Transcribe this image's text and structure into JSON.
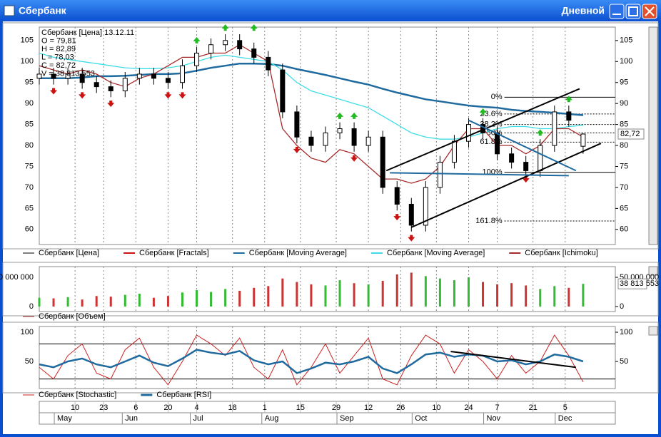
{
  "window": {
    "title": "Сбербанк",
    "mode": "Дневной"
  },
  "date_axis": {
    "xlim": [
      0,
      161
    ],
    "day_ticks": [
      {
        "value": 10,
        "label": "10"
      },
      {
        "value": 18,
        "label": "23"
      },
      {
        "value": 27,
        "label": "6"
      },
      {
        "value": 36,
        "label": "20"
      },
      {
        "value": 44,
        "label": "4"
      },
      {
        "value": 54,
        "label": "18"
      },
      {
        "value": 63,
        "label": "1"
      },
      {
        "value": 73,
        "label": "15"
      },
      {
        "value": 83,
        "label": "29"
      },
      {
        "value": 92,
        "label": "12"
      },
      {
        "value": 101,
        "label": "26"
      },
      {
        "value": 111,
        "label": "10"
      },
      {
        "value": 120,
        "label": "24"
      },
      {
        "value": 128,
        "label": "7"
      },
      {
        "value": 138,
        "label": "21"
      },
      {
        "value": 147,
        "label": "5"
      }
    ],
    "month_ticks": [
      {
        "value": 5,
        "label": "May"
      },
      {
        "value": 24,
        "label": "Jun"
      },
      {
        "value": 43,
        "label": "Jul"
      },
      {
        "value": 63,
        "label": "Aug"
      },
      {
        "value": 84,
        "label": "Sep"
      },
      {
        "value": 105,
        "label": "Oct"
      },
      {
        "value": 125,
        "label": "Nov"
      },
      {
        "value": 145,
        "label": "Dec"
      }
    ]
  },
  "chart_data": [
    {
      "type": "candlestick",
      "name": "Сбербанк [Цена]",
      "color": "#000000",
      "info": [
        "Сбербанк [Цена] 13.12.11",
        "O = 79,81",
        "H = 82,89",
        "L = 78,03",
        "C = 82,72",
        "V = 38 813 553"
      ],
      "x": [
        0,
        4,
        8,
        12,
        16,
        20,
        24,
        28,
        32,
        36,
        40,
        44,
        48,
        52,
        56,
        60,
        64,
        68,
        72,
        76,
        80,
        84,
        88,
        92,
        96,
        100,
        104,
        108,
        112,
        116,
        120,
        124,
        128,
        132,
        136,
        140,
        144,
        148,
        152
      ],
      "open": [
        96,
        97,
        96,
        97,
        95,
        94,
        93,
        96,
        97,
        96,
        95,
        99,
        102,
        104,
        105,
        103,
        101,
        98,
        88,
        82,
        80,
        83,
        84,
        80,
        82,
        70,
        66,
        61,
        70,
        76,
        81,
        85,
        83,
        78,
        76,
        74,
        80,
        88,
        79.81
      ],
      "high": [
        98.5,
        98.5,
        98.5,
        98.5,
        96.5,
        95.5,
        97.5,
        98.5,
        98.5,
        97.5,
        100.5,
        103.5,
        105.5,
        106.5,
        106.5,
        104.5,
        102.5,
        99.5,
        89.5,
        83.5,
        84.5,
        85.5,
        85.5,
        83.5,
        83.5,
        71.5,
        67.5,
        71.5,
        77.5,
        82.5,
        86.5,
        86.5,
        84.5,
        79.5,
        77.5,
        81.5,
        89.5,
        89.5,
        82.89
      ],
      "low": [
        94.5,
        94.5,
        94.5,
        93.5,
        92.5,
        91.5,
        91.5,
        94.5,
        94.5,
        93.5,
        93.5,
        97.5,
        100.5,
        102.5,
        101.5,
        99.5,
        96.5,
        86.5,
        80.5,
        78.5,
        78.5,
        81.5,
        78.5,
        78.5,
        68.5,
        64.5,
        59.5,
        59.5,
        68.5,
        74.5,
        79.5,
        81.5,
        76.5,
        74.5,
        72.5,
        72.5,
        78.5,
        84.5,
        78.03
      ],
      "close": [
        97,
        96,
        97,
        95,
        94,
        93,
        96,
        97,
        96,
        95,
        99,
        102,
        104,
        105,
        103,
        101,
        98,
        88,
        82,
        80,
        83,
        84,
        80,
        82,
        70,
        66,
        61,
        70,
        76,
        81,
        85,
        83,
        78,
        76,
        74,
        80,
        88,
        86,
        82.72
      ],
      "series": [
        {
          "name": "Сбербанк [Moving Average]",
          "color": "#1f6a9e",
          "values": [
            96,
            96,
            96,
            96.2,
            96.5,
            96.5,
            96.6,
            96.8,
            97,
            97,
            97.2,
            97.8,
            98.5,
            99,
            99.5,
            99.5,
            99.4,
            99,
            98.2,
            97.5,
            96.8,
            96,
            95.2,
            94.5,
            93.5,
            92.6,
            91.8,
            91,
            90.5,
            90,
            89.5,
            89.2,
            89,
            88.5,
            88.2,
            88,
            87.8,
            87.5,
            87.2
          ]
        },
        {
          "name": "Сбербанк [Moving Average]",
          "color": "#3fdde8",
          "values": [
            102,
            101,
            100.5,
            100,
            99.5,
            99,
            98.5,
            98.3,
            98.3,
            98.5,
            99,
            100,
            101,
            101.5,
            101,
            100.5,
            100,
            98,
            95,
            93,
            92,
            91,
            90,
            89,
            87,
            85,
            83,
            82,
            81.5,
            81.5,
            82,
            83,
            84,
            84.5,
            84.5,
            84,
            84,
            84.5,
            84.8
          ]
        },
        {
          "name": "Сбербанк [Ichimoku]",
          "color": "#a52a2a",
          "values": [
            99,
            98,
            97,
            98,
            97,
            95,
            94,
            96,
            97,
            99,
            101,
            101,
            102,
            102,
            104,
            102,
            100,
            84,
            80,
            77,
            76,
            79,
            78,
            75,
            72,
            72,
            71,
            72,
            75,
            80,
            84,
            84,
            80,
            80,
            78,
            80,
            84,
            84,
            82
          ]
        }
      ],
      "fractals": {
        "name": "Сбербанк [Fractals]",
        "color": "#cc1111",
        "up_color": "#22bb22",
        "up_x": [
          44,
          52,
          60,
          84,
          88,
          124,
          140,
          148
        ],
        "up": [
          105,
          108,
          108,
          87,
          87,
          88,
          83,
          91
        ],
        "down_x": [
          4,
          12,
          20,
          36,
          40,
          72,
          88,
          100,
          104,
          136
        ],
        "down": [
          93,
          92,
          90,
          92,
          92,
          79,
          77,
          63,
          58,
          72
        ]
      },
      "fib": [
        {
          "value": 91.5,
          "label": "0%"
        },
        {
          "value": 87.5,
          "label": "23.6%"
        },
        {
          "value": 85,
          "label": "38.2%"
        },
        {
          "value": 83,
          "label": "50%"
        },
        {
          "value": 80.8,
          "label": "61.8%"
        },
        {
          "value": 73.6,
          "label": "100%"
        },
        {
          "value": 62,
          "label": "161.8%"
        }
      ],
      "fib_x": [
        130,
        161
      ],
      "trendlines": [
        [
          104,
          60.5,
          157,
          80.5
        ],
        [
          97,
          74,
          151,
          93.5
        ],
        [
          98,
          73.5,
          148,
          72.8
        ],
        [
          120,
          86,
          150,
          74
        ]
      ],
      "last": {
        "value": 82.72,
        "label": "82,72"
      },
      "ylim": [
        56.4,
        108.2
      ],
      "yticks": [
        60,
        65,
        70,
        75,
        80,
        85,
        90,
        95,
        100,
        105
      ],
      "grid": true
    },
    {
      "type": "bar",
      "name": "Сбербанк [Объем]",
      "color": "#a52a2a",
      "up_color": "#33bb33",
      "down_color": "#cc3333",
      "values": [
        15000000,
        14000000,
        16000000,
        12000000,
        18000000,
        17000000,
        20000000,
        22000000,
        15000000,
        18000000,
        24000000,
        28000000,
        25000000,
        30000000,
        27000000,
        32000000,
        35000000,
        48000000,
        42000000,
        38000000,
        36000000,
        45000000,
        40000000,
        38000000,
        44000000,
        55000000,
        58000000,
        52000000,
        48000000,
        45000000,
        50000000,
        42000000,
        38000000,
        40000000,
        36000000,
        30000000,
        35000000,
        32000000,
        38813553
      ],
      "last": {
        "value": 38813553,
        "label": "38 813 553"
      },
      "ylim": [
        -8540000,
        68290000
      ],
      "yticks": [
        {
          "value": 50000000,
          "label": "50 000 000"
        },
        0
      ]
    },
    {
      "type": "line",
      "levels": [
        80,
        20
      ],
      "series": [
        {
          "name": "Сбербанк [Stochastic]",
          "color": "#cc2222",
          "values": [
            40,
            20,
            60,
            80,
            30,
            20,
            70,
            90,
            40,
            10,
            50,
            95,
            80,
            60,
            90,
            40,
            20,
            70,
            10,
            40,
            80,
            30,
            60,
            90,
            20,
            10,
            60,
            95,
            80,
            30,
            70,
            50,
            20,
            60,
            30,
            50,
            95,
            60,
            15
          ]
        },
        {
          "name": "Сбербанк [RSI]",
          "color": "#1f6a9e",
          "values": [
            45,
            40,
            50,
            55,
            45,
            40,
            50,
            60,
            48,
            42,
            55,
            70,
            65,
            62,
            68,
            52,
            45,
            50,
            30,
            38,
            48,
            45,
            50,
            58,
            38,
            30,
            45,
            62,
            65,
            58,
            62,
            60,
            50,
            52,
            45,
            50,
            62,
            58,
            50
          ]
        }
      ],
      "trendline": [
        115,
        67,
        150,
        40
      ],
      "ylim": [
        3.7,
        109.8
      ],
      "yticks": [
        100,
        50
      ]
    }
  ]
}
